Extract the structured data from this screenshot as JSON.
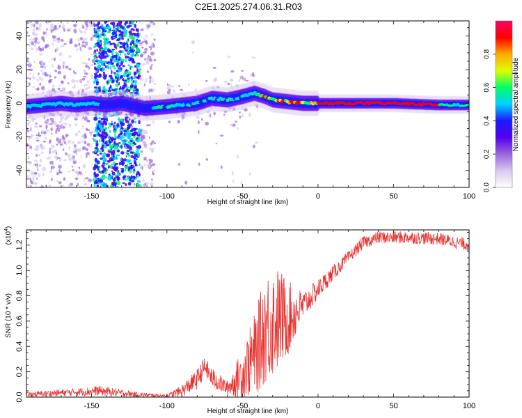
{
  "page": {
    "title": "C2E1.2025.274.06.31.R03"
  },
  "chart_data": [
    {
      "type": "heatmap",
      "name": "spectrogram",
      "title": "C2E1.2025.274.06.31.R03",
      "xlabel": "Height of straight line (km)",
      "ylabel": "Frequency (Hz)",
      "xlim": [
        -193,
        100
      ],
      "ylim": [
        -50,
        49
      ],
      "xticks": [
        -150,
        -100,
        -50,
        0,
        50,
        100
      ],
      "yticks": [
        -40,
        -20,
        0,
        20,
        40
      ],
      "colorbar": {
        "label": "Normalized spectral amplitude",
        "range": [
          0,
          1
        ],
        "ticks": [
          "0.0",
          "0.2",
          "0.4",
          "0.6",
          "0.8"
        ],
        "colors": [
          "#ffffff",
          "#d9c8ef",
          "#9966dd",
          "#5500ee",
          "#1a1aff",
          "#00d2ff",
          "#00ff66",
          "#dcff00",
          "#ffaa00",
          "#ff0000",
          "#ff0066"
        ]
      },
      "ridge": [
        [
          -193,
          -2
        ],
        [
          -170,
          0
        ],
        [
          -160,
          -1
        ],
        [
          -150,
          0
        ],
        [
          -140,
          -1
        ],
        [
          -130,
          0
        ],
        [
          -115,
          -3
        ],
        [
          -100,
          -2
        ],
        [
          -90,
          -1
        ],
        [
          -80,
          0
        ],
        [
          -70,
          3
        ],
        [
          -60,
          2
        ],
        [
          -50,
          4
        ],
        [
          -42,
          6
        ],
        [
          -35,
          4
        ],
        [
          -30,
          2
        ],
        [
          -20,
          1
        ],
        [
          -10,
          0
        ],
        [
          0,
          0
        ],
        [
          10,
          0
        ],
        [
          50,
          0
        ],
        [
          80,
          -1
        ],
        [
          100,
          -1
        ]
      ]
    },
    {
      "type": "line",
      "name": "snr",
      "xlabel": "Height of straight line (km)",
      "ylabel": "SNR (10 * v/v)",
      "scale_note": "(x10",
      "scale_exp": "4",
      "scale_close": ")",
      "xlim": [
        -193,
        100
      ],
      "ylim": [
        0,
        1.32
      ],
      "xticks": [
        -150,
        -100,
        -50,
        0,
        50,
        100
      ],
      "yticks": [
        "0.0",
        "0.2",
        "0.4",
        "0.6",
        "0.8",
        "1.0",
        "1.2"
      ],
      "series_color": "#e8312f",
      "envelope": {
        "x": [
          -193,
          -160,
          -145,
          -120,
          -100,
          -90,
          -80,
          -75,
          -70,
          -60,
          -50,
          -40,
          -35,
          -30,
          -25,
          -20,
          -10,
          0,
          10,
          20,
          30,
          40,
          60,
          80,
          100
        ],
        "center": [
          0.02,
          0.04,
          0.05,
          0.02,
          0.01,
          0.05,
          0.14,
          0.24,
          0.15,
          0.07,
          0.18,
          0.38,
          0.55,
          0.6,
          0.62,
          0.62,
          0.72,
          0.85,
          0.98,
          1.1,
          1.22,
          1.26,
          1.26,
          1.25,
          1.2
        ],
        "spread": [
          0.02,
          0.03,
          0.04,
          0.02,
          0.01,
          0.05,
          0.08,
          0.08,
          0.08,
          0.06,
          0.2,
          0.35,
          0.45,
          0.45,
          0.4,
          0.3,
          0.12,
          0.08,
          0.06,
          0.05,
          0.05,
          0.05,
          0.05,
          0.05,
          0.05
        ]
      }
    }
  ]
}
